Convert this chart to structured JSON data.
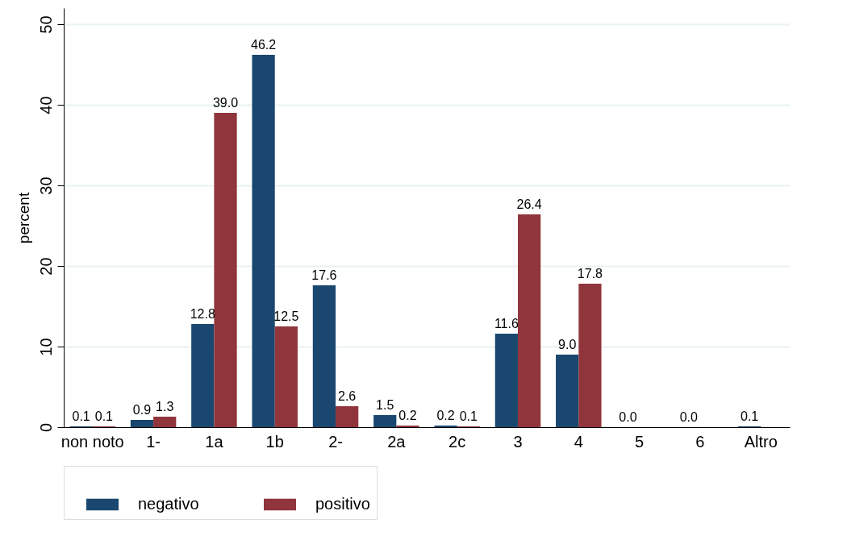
{
  "chart_data": {
    "type": "bar",
    "ylabel": "percent",
    "categories": [
      "non noto",
      "1-",
      "1a",
      "1b",
      "2-",
      "2a",
      "2c",
      "3",
      "4",
      "5",
      "6",
      "Altro"
    ],
    "series": [
      {
        "name": "negativo",
        "color": "#1a476f",
        "values": [
          0.1,
          0.9,
          12.8,
          46.2,
          17.6,
          1.5,
          0.2,
          11.6,
          9.0,
          0.0,
          0.0,
          0.1
        ],
        "value_labels": [
          "0.1",
          "0.9",
          "12.8",
          "46.2",
          "17.6",
          "1.5",
          "0.2",
          "11.6",
          "9.0",
          "0.0",
          "0.0",
          "0.1"
        ]
      },
      {
        "name": "positivo",
        "color": "#90353b",
        "values": [
          0.1,
          1.3,
          39.0,
          12.5,
          2.6,
          0.2,
          0.1,
          26.4,
          17.8,
          null,
          null,
          null
        ],
        "value_labels": [
          "0.1",
          "1.3",
          "39.0",
          "12.5",
          "2.6",
          "0.2",
          "0.1",
          "26.4",
          "17.8",
          null,
          null,
          null
        ]
      }
    ],
    "ylim": [
      0,
      52
    ],
    "yticks": [
      0,
      10,
      20,
      30,
      40,
      50
    ],
    "grid": "y",
    "legend": "bottom"
  }
}
